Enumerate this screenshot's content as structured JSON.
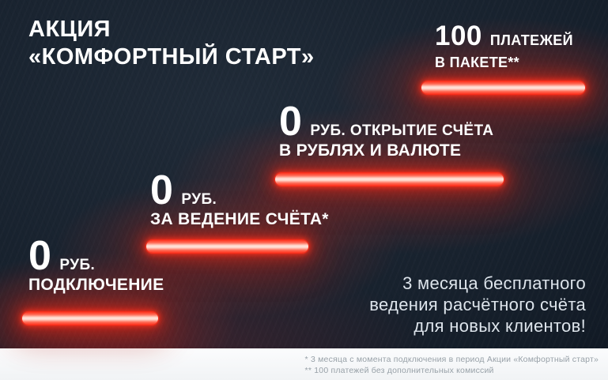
{
  "title": {
    "line1": "АКЦИЯ",
    "line2": "«КОМФОРТНЫЙ СТАРТ»"
  },
  "steps": [
    {
      "value": "0",
      "unit": "РУБ.",
      "caption": "ПОДКЛЮЧЕНИЕ"
    },
    {
      "value": "0",
      "unit": "РУБ.",
      "caption": "ЗА ВЕДЕНИЕ СЧЁТА*"
    },
    {
      "value": "0",
      "unit": "РУБ. ОТКРЫТИЕ СЧЁТА",
      "caption": "В РУБЛЯХ И ВАЛЮТЕ"
    },
    {
      "value": "100",
      "unit": "ПЛАТЕЖЕЙ",
      "caption": "В ПАКЕТЕ**"
    }
  ],
  "offer": {
    "line1": "3 месяца бесплатного",
    "line2": "ведения расчётного счёта",
    "line3": "для новых клиентов!"
  },
  "footnotes": [
    "* 3 месяца с момента подключения в период Акции «Комфортный старт»",
    "** 100 платежей без дополнительных комиссий"
  ],
  "colors": {
    "background": "#121b26",
    "neon_red": "#ff2d1a",
    "neon_core": "#ffe3da",
    "headline_text": "#ffffff",
    "offer_text": "#dde4eb",
    "footer_background": "#f5f6f7",
    "footnote_text": "#98a1a8"
  }
}
